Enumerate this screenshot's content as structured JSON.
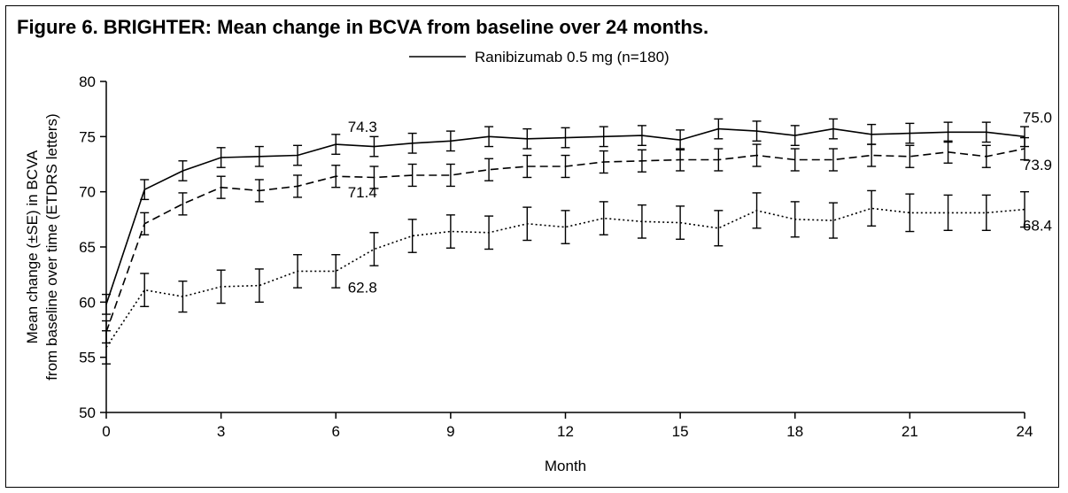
{
  "title": "Figure 6. BRIGHTER: Mean change in BCVA from baseline over 24 months.",
  "chart_data": {
    "type": "line",
    "title": "Figure 6. BRIGHTER: Mean change in BCVA from baseline over 24 months.",
    "xlabel": "Month",
    "ylabel": [
      "Mean change (±SE) in BCVA",
      "from baseline over time (ETDRS letters)"
    ],
    "xlim": [
      0,
      24
    ],
    "ylim": [
      50,
      80
    ],
    "xticks": [
      0,
      3,
      6,
      9,
      12,
      15,
      18,
      21,
      24
    ],
    "yticks": [
      50,
      55,
      60,
      65,
      70,
      75,
      80
    ],
    "grid": false,
    "legend_position": "top-center",
    "x": [
      0,
      1,
      2,
      3,
      4,
      5,
      6,
      7,
      8,
      9,
      10,
      11,
      12,
      13,
      14,
      15,
      16,
      17,
      18,
      19,
      20,
      21,
      22,
      23,
      24
    ],
    "series": [
      {
        "name": "Ranibizumab 0.5 mg (n=180)",
        "style": "solid",
        "values": [
          59.8,
          70.2,
          71.9,
          73.1,
          73.2,
          73.3,
          74.3,
          74.1,
          74.4,
          74.6,
          75.0,
          74.8,
          74.9,
          75.0,
          75.1,
          74.7,
          75.7,
          75.5,
          75.1,
          75.7,
          75.2,
          75.3,
          75.4,
          75.4,
          75.0
        ],
        "se": [
          0.9,
          0.9,
          0.9,
          0.9,
          0.9,
          0.9,
          0.9,
          0.9,
          0.9,
          0.9,
          0.9,
          0.9,
          0.9,
          0.9,
          0.9,
          0.9,
          0.9,
          0.9,
          0.9,
          0.9,
          0.9,
          0.9,
          0.9,
          0.9,
          0.9
        ]
      },
      {
        "name": "",
        "style": "dashed",
        "values": [
          57.3,
          67.1,
          68.9,
          70.4,
          70.1,
          70.5,
          71.4,
          71.3,
          71.5,
          71.5,
          72.0,
          72.3,
          72.3,
          72.7,
          72.8,
          72.9,
          72.9,
          73.3,
          72.9,
          72.9,
          73.3,
          73.2,
          73.6,
          73.2,
          73.9
        ],
        "se": [
          1.0,
          1.0,
          1.0,
          1.0,
          1.0,
          1.0,
          1.0,
          1.0,
          1.0,
          1.0,
          1.0,
          1.0,
          1.0,
          1.0,
          1.0,
          1.0,
          1.0,
          1.0,
          1.0,
          1.0,
          1.0,
          1.0,
          1.0,
          1.0,
          1.0
        ]
      },
      {
        "name": "",
        "style": "dotted",
        "values": [
          55.9,
          61.1,
          60.5,
          61.4,
          61.5,
          62.8,
          62.8,
          64.8,
          66.0,
          66.4,
          66.3,
          67.1,
          66.8,
          67.6,
          67.3,
          67.2,
          66.7,
          68.3,
          67.5,
          67.4,
          68.5,
          68.1,
          68.1,
          68.1,
          68.4
        ],
        "se": [
          1.5,
          1.5,
          1.4,
          1.5,
          1.5,
          1.5,
          1.5,
          1.5,
          1.5,
          1.5,
          1.5,
          1.5,
          1.5,
          1.5,
          1.5,
          1.5,
          1.6,
          1.6,
          1.6,
          1.6,
          1.6,
          1.7,
          1.6,
          1.6,
          1.6
        ]
      }
    ],
    "annotations": [
      {
        "text": "74.3",
        "x": 6,
        "y": 74.3
      },
      {
        "text": "71.4",
        "x": 6,
        "y": 71.4
      },
      {
        "text": "62.8",
        "x": 6,
        "y": 62.8
      },
      {
        "text": "75.0",
        "x": 24,
        "y": 75.0
      },
      {
        "text": "73.9",
        "x": 24,
        "y": 73.9
      },
      {
        "text": "68.4",
        "x": 24,
        "y": 68.4
      }
    ]
  }
}
